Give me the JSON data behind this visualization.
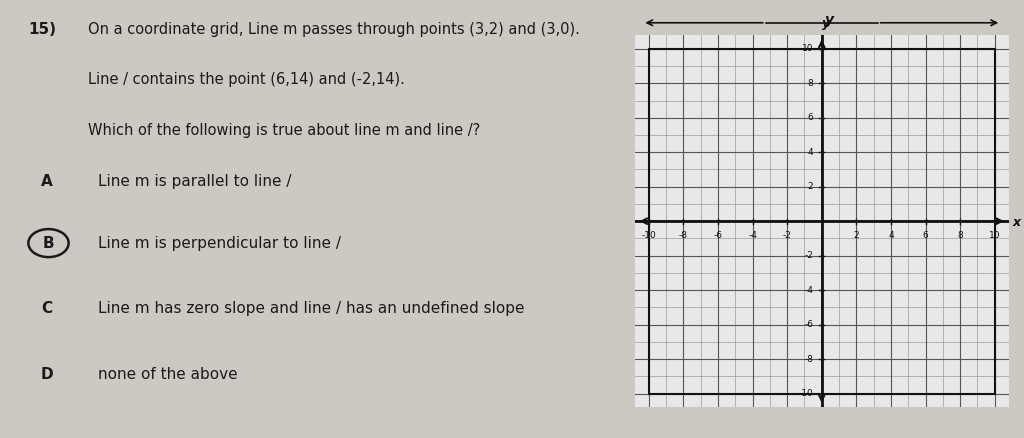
{
  "question_number": "15)",
  "question_text_line1": "On a coordinate grid, Line m passes through points (3,2) and (3,0).",
  "question_text_line2": "Line / contains the point (6,14) and (-2,14).",
  "question_text_line3": "Which of the following is true about line m and line /?",
  "options": [
    {
      "label": "A",
      "text": "Line m is parallel to line /",
      "circled": false
    },
    {
      "label": "B",
      "text": "Line m is perpendicular to line /",
      "circled": true
    },
    {
      "label": "C",
      "text": "Line m has zero slope and line / has an undefined slope",
      "circled": false
    },
    {
      "label": "D",
      "text": "none of the above",
      "circled": false
    }
  ],
  "grid_xlim": [
    -10,
    10
  ],
  "grid_ylim": [
    -10,
    10
  ],
  "grid_even_ticks": [
    -10,
    -8,
    -6,
    -4,
    -2,
    2,
    4,
    6,
    8,
    10
  ],
  "grid_xlabel": "x",
  "grid_ylabel": "y",
  "bg_color": "#ccc8c2",
  "text_color": "#1a1a1a",
  "grid_bg": "#e8e8e8",
  "grid_line_minor": "#999999",
  "grid_line_major": "#555555",
  "axis_color": "#111111"
}
